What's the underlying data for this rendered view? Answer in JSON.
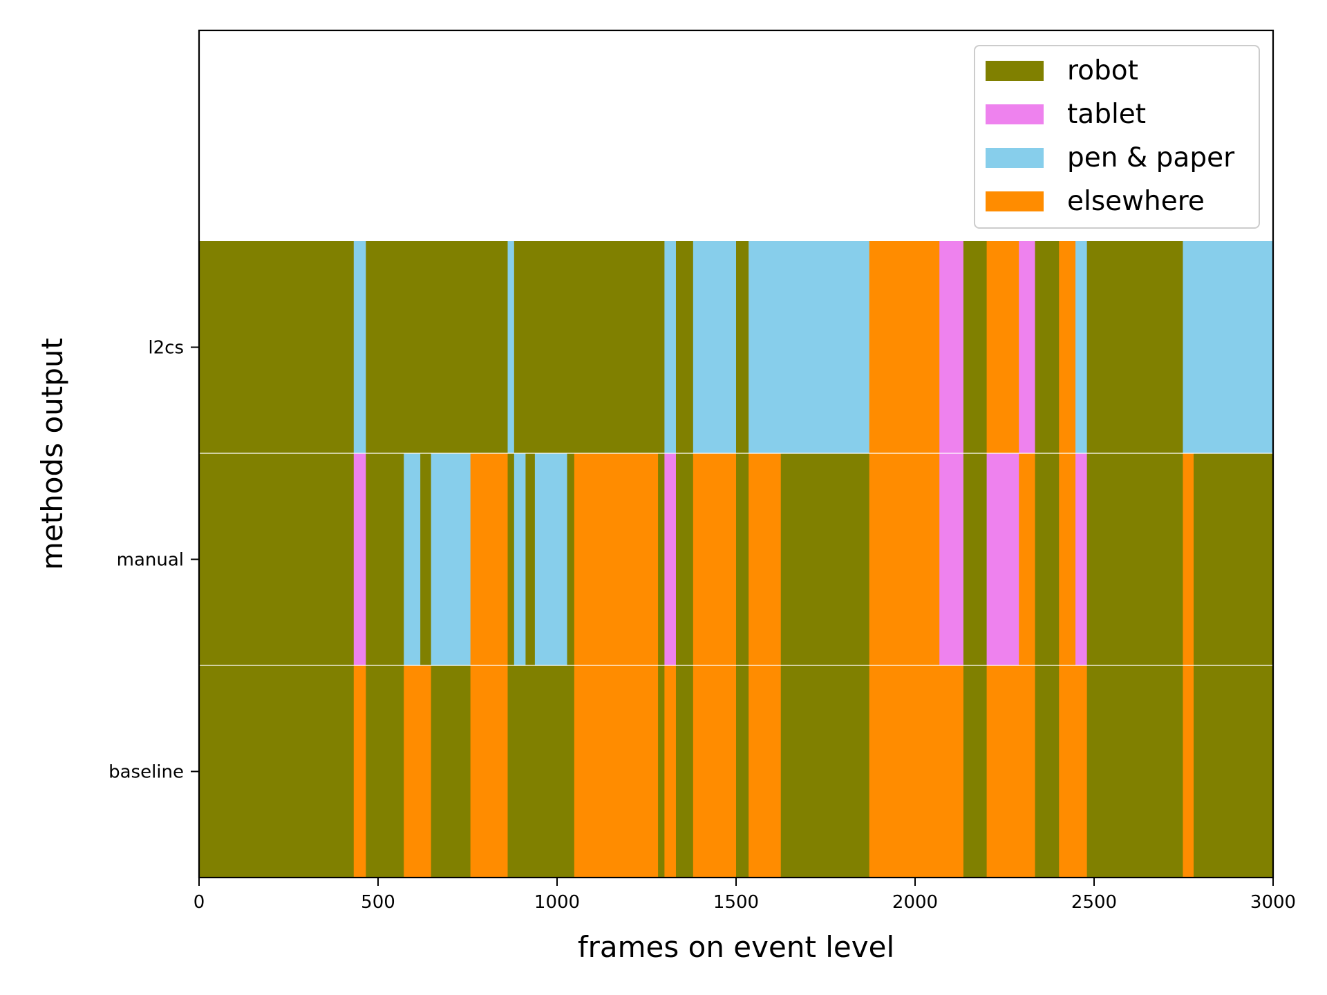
{
  "chart_data": {
    "type": "broken_barh",
    "xlabel": "frames on event level",
    "ylabel": "methods output",
    "xlim": [
      0,
      3000
    ],
    "xticks": [
      0,
      500,
      1000,
      1500,
      2000,
      2500,
      3000
    ],
    "rows_bottom_to_top": [
      "baseline",
      "manual",
      "l2cs"
    ],
    "grid": false,
    "legend_position": "top-right",
    "categories": [
      {
        "name": "robot",
        "color": "#808000"
      },
      {
        "name": "tablet",
        "color": "#ee82ee"
      },
      {
        "name": "pen & paper",
        "color": "#87ceeb"
      },
      {
        "name": "elsewhere",
        "color": "#ff8c00"
      }
    ],
    "rows": [
      {
        "name": "l2cs",
        "segments": [
          {
            "start": 0,
            "end": 432,
            "label": "robot"
          },
          {
            "start": 432,
            "end": 466,
            "label": "pen & paper"
          },
          {
            "start": 466,
            "end": 862,
            "label": "robot"
          },
          {
            "start": 862,
            "end": 880,
            "label": "pen & paper"
          },
          {
            "start": 880,
            "end": 1300,
            "label": "robot"
          },
          {
            "start": 1300,
            "end": 1332,
            "label": "pen & paper"
          },
          {
            "start": 1332,
            "end": 1380,
            "label": "robot"
          },
          {
            "start": 1380,
            "end": 1500,
            "label": "pen & paper"
          },
          {
            "start": 1500,
            "end": 1535,
            "label": "robot"
          },
          {
            "start": 1535,
            "end": 1872,
            "label": "pen & paper"
          },
          {
            "start": 1872,
            "end": 2068,
            "label": "elsewhere"
          },
          {
            "start": 2068,
            "end": 2135,
            "label": "tablet"
          },
          {
            "start": 2135,
            "end": 2200,
            "label": "robot"
          },
          {
            "start": 2200,
            "end": 2290,
            "label": "elsewhere"
          },
          {
            "start": 2290,
            "end": 2335,
            "label": "tablet"
          },
          {
            "start": 2335,
            "end": 2402,
            "label": "robot"
          },
          {
            "start": 2402,
            "end": 2448,
            "label": "elsewhere"
          },
          {
            "start": 2448,
            "end": 2480,
            "label": "pen & paper"
          },
          {
            "start": 2480,
            "end": 2748,
            "label": "robot"
          },
          {
            "start": 2748,
            "end": 3000,
            "label": "pen & paper"
          }
        ]
      },
      {
        "name": "manual",
        "segments": [
          {
            "start": 0,
            "end": 432,
            "label": "robot"
          },
          {
            "start": 432,
            "end": 466,
            "label": "tablet"
          },
          {
            "start": 466,
            "end": 572,
            "label": "robot"
          },
          {
            "start": 572,
            "end": 618,
            "label": "pen & paper"
          },
          {
            "start": 618,
            "end": 648,
            "label": "robot"
          },
          {
            "start": 648,
            "end": 758,
            "label": "pen & paper"
          },
          {
            "start": 758,
            "end": 862,
            "label": "elsewhere"
          },
          {
            "start": 862,
            "end": 880,
            "label": "robot"
          },
          {
            "start": 880,
            "end": 912,
            "label": "pen & paper"
          },
          {
            "start": 912,
            "end": 938,
            "label": "robot"
          },
          {
            "start": 938,
            "end": 1028,
            "label": "pen & paper"
          },
          {
            "start": 1028,
            "end": 1048,
            "label": "robot"
          },
          {
            "start": 1048,
            "end": 1282,
            "label": "elsewhere"
          },
          {
            "start": 1282,
            "end": 1300,
            "label": "robot"
          },
          {
            "start": 1300,
            "end": 1332,
            "label": "tablet"
          },
          {
            "start": 1332,
            "end": 1380,
            "label": "robot"
          },
          {
            "start": 1380,
            "end": 1500,
            "label": "elsewhere"
          },
          {
            "start": 1500,
            "end": 1535,
            "label": "robot"
          },
          {
            "start": 1535,
            "end": 1625,
            "label": "elsewhere"
          },
          {
            "start": 1625,
            "end": 1872,
            "label": "robot"
          },
          {
            "start": 1872,
            "end": 2068,
            "label": "elsewhere"
          },
          {
            "start": 2068,
            "end": 2135,
            "label": "tablet"
          },
          {
            "start": 2135,
            "end": 2200,
            "label": "robot"
          },
          {
            "start": 2200,
            "end": 2290,
            "label": "tablet"
          },
          {
            "start": 2290,
            "end": 2335,
            "label": "elsewhere"
          },
          {
            "start": 2335,
            "end": 2402,
            "label": "robot"
          },
          {
            "start": 2402,
            "end": 2448,
            "label": "elsewhere"
          },
          {
            "start": 2448,
            "end": 2480,
            "label": "tablet"
          },
          {
            "start": 2480,
            "end": 2748,
            "label": "robot"
          },
          {
            "start": 2748,
            "end": 2778,
            "label": "elsewhere"
          },
          {
            "start": 2778,
            "end": 3000,
            "label": "robot"
          }
        ]
      },
      {
        "name": "baseline",
        "segments": [
          {
            "start": 0,
            "end": 432,
            "label": "robot"
          },
          {
            "start": 432,
            "end": 466,
            "label": "elsewhere"
          },
          {
            "start": 466,
            "end": 572,
            "label": "robot"
          },
          {
            "start": 572,
            "end": 648,
            "label": "elsewhere"
          },
          {
            "start": 648,
            "end": 758,
            "label": "robot"
          },
          {
            "start": 758,
            "end": 862,
            "label": "elsewhere"
          },
          {
            "start": 862,
            "end": 1048,
            "label": "robot"
          },
          {
            "start": 1048,
            "end": 1282,
            "label": "elsewhere"
          },
          {
            "start": 1282,
            "end": 1300,
            "label": "robot"
          },
          {
            "start": 1300,
            "end": 1332,
            "label": "elsewhere"
          },
          {
            "start": 1332,
            "end": 1380,
            "label": "robot"
          },
          {
            "start": 1380,
            "end": 1500,
            "label": "elsewhere"
          },
          {
            "start": 1500,
            "end": 1535,
            "label": "robot"
          },
          {
            "start": 1535,
            "end": 1625,
            "label": "elsewhere"
          },
          {
            "start": 1625,
            "end": 1872,
            "label": "robot"
          },
          {
            "start": 1872,
            "end": 2135,
            "label": "elsewhere"
          },
          {
            "start": 2135,
            "end": 2200,
            "label": "robot"
          },
          {
            "start": 2200,
            "end": 2335,
            "label": "elsewhere"
          },
          {
            "start": 2335,
            "end": 2402,
            "label": "robot"
          },
          {
            "start": 2402,
            "end": 2480,
            "label": "elsewhere"
          },
          {
            "start": 2480,
            "end": 2748,
            "label": "robot"
          },
          {
            "start": 2748,
            "end": 2778,
            "label": "elsewhere"
          },
          {
            "start": 2778,
            "end": 3000,
            "label": "robot"
          }
        ]
      }
    ]
  }
}
